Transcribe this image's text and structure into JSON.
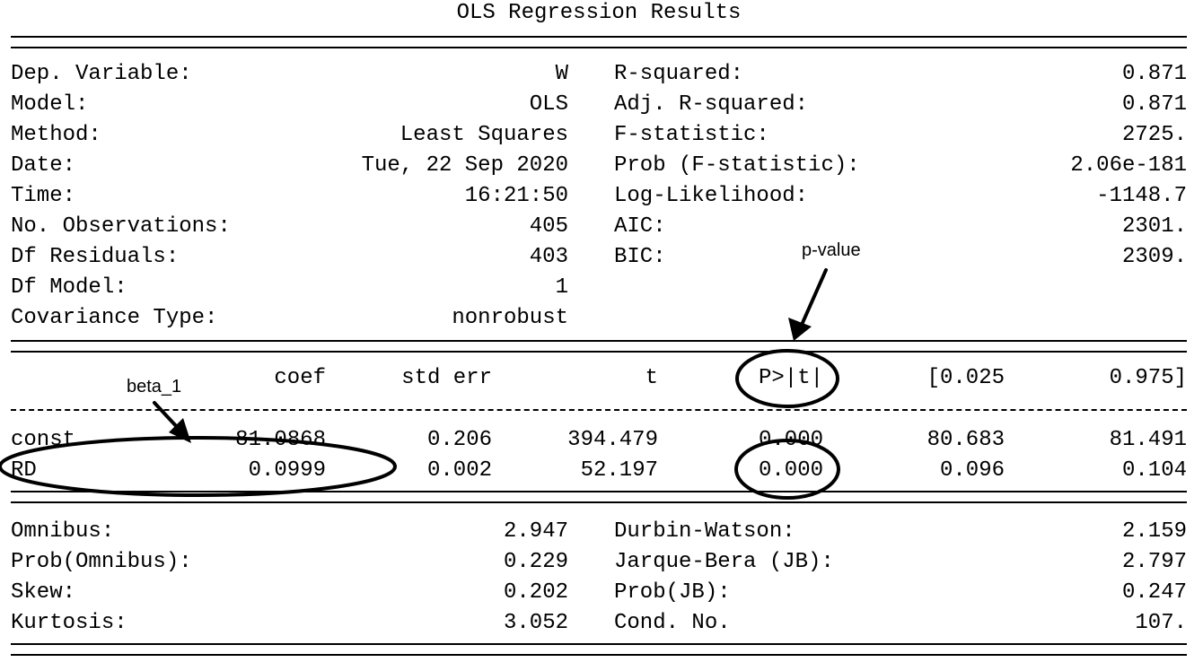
{
  "title": "OLS Regression Results",
  "summary_left": [
    {
      "label": "Dep. Variable:",
      "value": "W"
    },
    {
      "label": "Model:",
      "value": "OLS"
    },
    {
      "label": "Method:",
      "value": "Least Squares"
    },
    {
      "label": "Date:",
      "value": "Tue, 22 Sep 2020"
    },
    {
      "label": "Time:",
      "value": "16:21:50"
    },
    {
      "label": "No. Observations:",
      "value": "405"
    },
    {
      "label": "Df Residuals:",
      "value": "403"
    },
    {
      "label": "Df Model:",
      "value": "1"
    },
    {
      "label": "Covariance Type:",
      "value": "nonrobust"
    }
  ],
  "summary_right": [
    {
      "label": "R-squared:",
      "value": "0.871"
    },
    {
      "label": "Adj. R-squared:",
      "value": "0.871"
    },
    {
      "label": "F-statistic:",
      "value": "2725."
    },
    {
      "label": "Prob (F-statistic):",
      "value": "2.06e-181"
    },
    {
      "label": "Log-Likelihood:",
      "value": "-1148.7"
    },
    {
      "label": "AIC:",
      "value": "2301."
    },
    {
      "label": "BIC:",
      "value": "2309."
    }
  ],
  "coef_table": {
    "headers": [
      "coef",
      "std err",
      "t",
      "P>|t|",
      "[0.025",
      "0.975]"
    ],
    "rows": [
      {
        "name": "const",
        "values": [
          "81.0868",
          "0.206",
          "394.479",
          "0.000",
          "80.683",
          "81.491"
        ]
      },
      {
        "name": "RD",
        "values": [
          "0.0999",
          "0.002",
          "52.197",
          "0.000",
          "0.096",
          "0.104"
        ]
      }
    ]
  },
  "diagnostics_left": [
    {
      "label": "Omnibus:",
      "value": "2.947"
    },
    {
      "label": "Prob(Omnibus):",
      "value": "0.229"
    },
    {
      "label": "Skew:",
      "value": "0.202"
    },
    {
      "label": "Kurtosis:",
      "value": "3.052"
    }
  ],
  "diagnostics_right": [
    {
      "label": "Durbin-Watson:",
      "value": "2.159"
    },
    {
      "label": "Jarque-Bera (JB):",
      "value": "2.797"
    },
    {
      "label": "Prob(JB):",
      "value": "0.247"
    },
    {
      "label": "Cond. No.",
      "value": "107."
    }
  ],
  "annotations": {
    "pvalue_label": "p-value",
    "beta_label": "beta_1"
  }
}
